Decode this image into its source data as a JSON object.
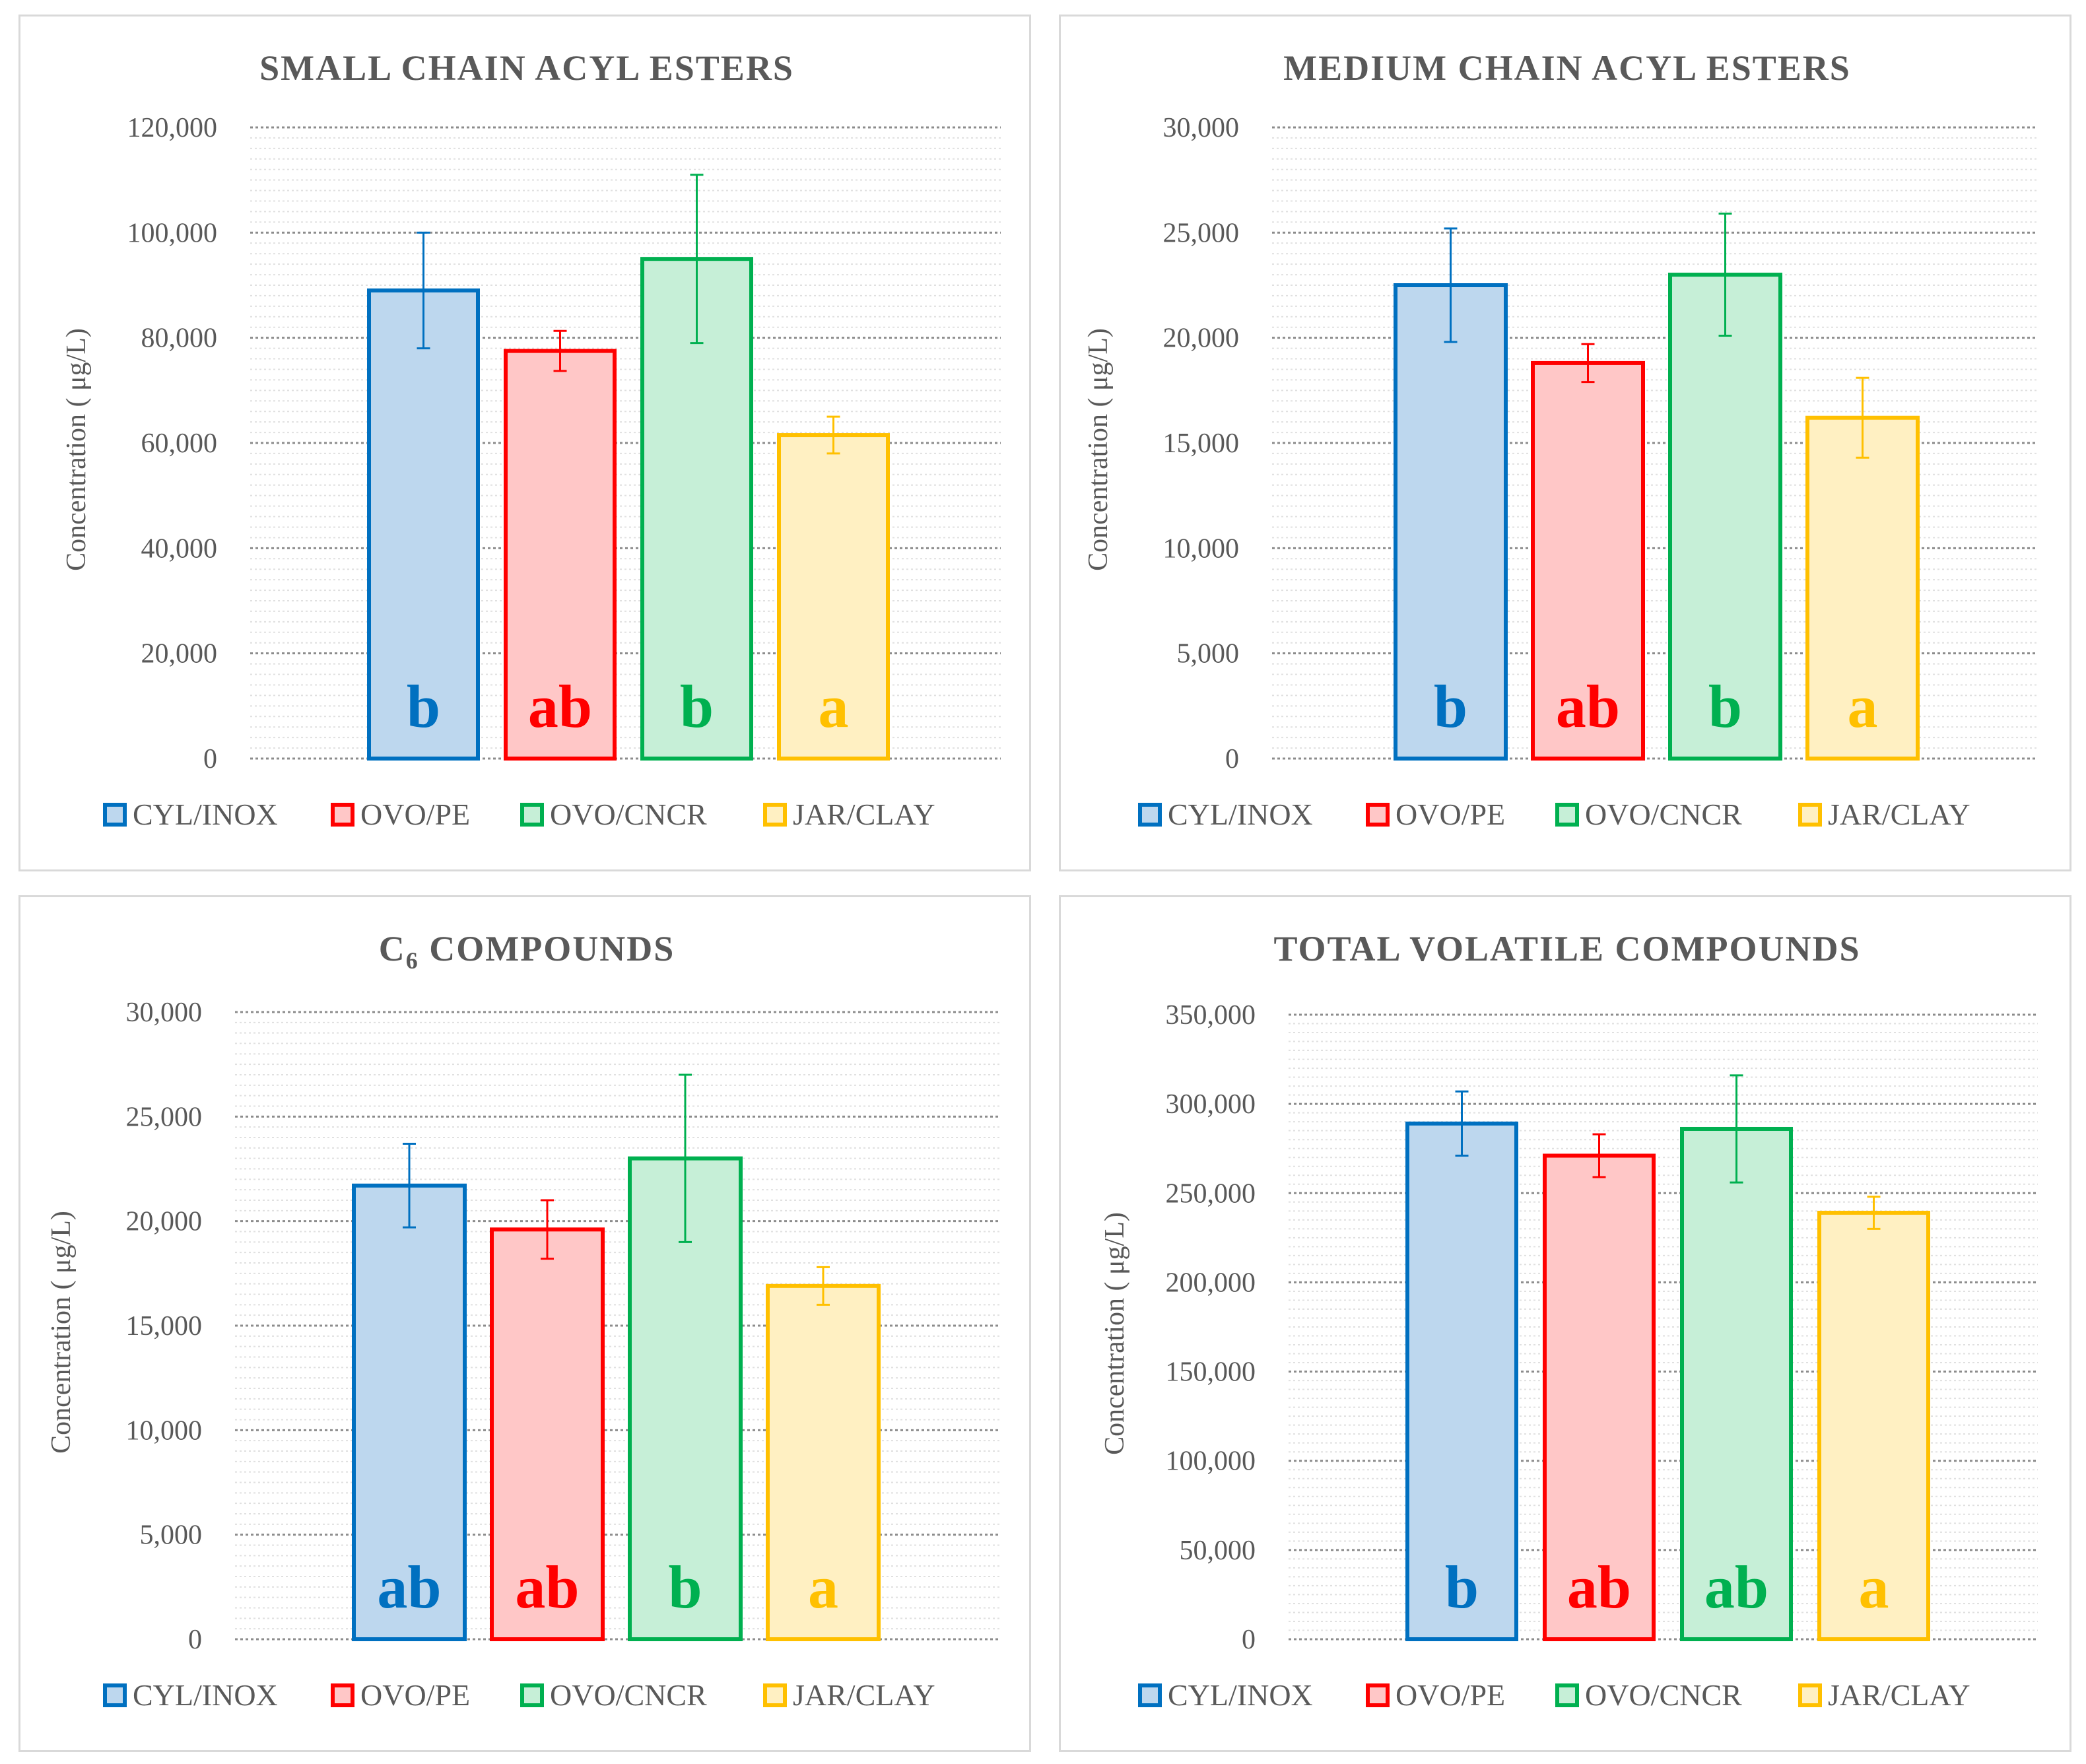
{
  "chart_data": [
    {
      "type": "bar",
      "title": "SMALL CHAIN ACYL ESTERS",
      "ylabel": "Concentration ( μg/L)",
      "xlabel": "",
      "ylim": [
        0,
        120000
      ],
      "yticks": [
        0,
        20000,
        40000,
        60000,
        80000,
        100000,
        120000
      ],
      "categories": [
        "CYL/INOX",
        "OVO/PE",
        "OVO/CNCR",
        "JAR/CLAY"
      ],
      "values": [
        89000,
        77500,
        95000,
        61500
      ],
      "errors": [
        11000,
        3800,
        16000,
        3500
      ],
      "letters": [
        "b",
        "ab",
        "b",
        "a"
      ]
    },
    {
      "type": "bar",
      "title": "MEDIUM CHAIN ACYL ESTERS",
      "ylabel": "Concentration ( μg/L)",
      "xlabel": "",
      "ylim": [
        0,
        30000
      ],
      "yticks": [
        0,
        5000,
        10000,
        15000,
        20000,
        25000,
        30000
      ],
      "categories": [
        "CYL/INOX",
        "OVO/PE",
        "OVO/CNCR",
        "JAR/CLAY"
      ],
      "values": [
        22500,
        18800,
        23000,
        16200
      ],
      "errors": [
        2700,
        900,
        2900,
        1900
      ],
      "letters": [
        "b",
        "ab",
        "b",
        "a"
      ]
    },
    {
      "type": "bar",
      "title": "C",
      "title_sub": "6",
      "title_rest": " COMPOUNDS",
      "ylabel": "Concentration ( μg/L)",
      "xlabel": "",
      "ylim": [
        0,
        30000
      ],
      "yticks": [
        0,
        5000,
        10000,
        15000,
        20000,
        25000,
        30000
      ],
      "categories": [
        "CYL/INOX",
        "OVO/PE",
        "OVO/CNCR",
        "JAR/CLAY"
      ],
      "values": [
        21700,
        19600,
        23000,
        16900
      ],
      "errors": [
        2000,
        1400,
        4000,
        900
      ],
      "letters": [
        "ab",
        "ab",
        "b",
        "a"
      ]
    },
    {
      "type": "bar",
      "title": "TOTAL VOLATILE COMPOUNDS",
      "ylabel": "Concentration ( μg/L)",
      "xlabel": "",
      "ylim": [
        0,
        350000
      ],
      "yticks": [
        0,
        50000,
        100000,
        150000,
        200000,
        250000,
        300000,
        350000
      ],
      "categories": [
        "CYL/INOX",
        "OVO/PE",
        "OVO/CNCR",
        "JAR/CLAY"
      ],
      "values": [
        289000,
        271000,
        286000,
        239000
      ],
      "errors": [
        18000,
        12000,
        30000,
        9000
      ],
      "letters": [
        "b",
        "ab",
        "ab",
        "a"
      ]
    }
  ],
  "colors": {
    "stroke": [
      "#0070C0",
      "#FF0000",
      "#00B050",
      "#FFC000"
    ],
    "fill": [
      "#BDD7EE",
      "#FFC7C7",
      "#C6EFD7",
      "#FFF0C2"
    ],
    "text": "#595959",
    "grid": "#a6a6a6"
  }
}
